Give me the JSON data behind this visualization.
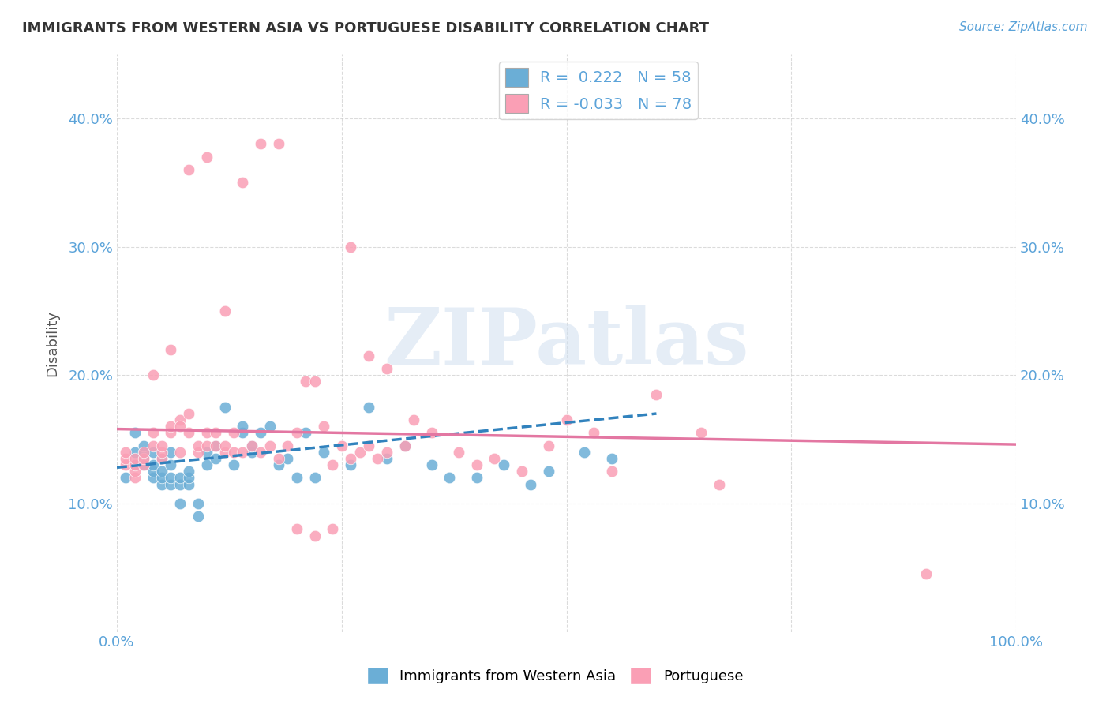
{
  "title": "IMMIGRANTS FROM WESTERN ASIA VS PORTUGUESE DISABILITY CORRELATION CHART",
  "source": "Source: ZipAtlas.com",
  "ylabel": "Disability",
  "watermark": "ZIPatlas",
  "legend_1_label": "Immigrants from Western Asia",
  "legend_2_label": "Portuguese",
  "r1": 0.222,
  "n1": 58,
  "r2": -0.033,
  "n2": 78,
  "blue_color": "#6baed6",
  "pink_color": "#fa9fb5",
  "blue_line_color": "#3182bd",
  "pink_line_color": "#e377a2",
  "axis_color": "#5ba3d9",
  "background_color": "#ffffff",
  "grid_color": "#cccccc",
  "title_color": "#333333",
  "watermark_color": "#d0dff0",
  "xlim": [
    0.0,
    1.0
  ],
  "ylim": [
    0.0,
    0.45
  ],
  "yticks": [
    0.1,
    0.2,
    0.3,
    0.4
  ],
  "ytick_labels": [
    "10.0%",
    "20.0%",
    "30.0%",
    "40.0%"
  ],
  "blue_scatter_x": [
    0.01,
    0.02,
    0.02,
    0.02,
    0.03,
    0.03,
    0.03,
    0.03,
    0.04,
    0.04,
    0.04,
    0.04,
    0.05,
    0.05,
    0.05,
    0.05,
    0.06,
    0.06,
    0.06,
    0.06,
    0.07,
    0.07,
    0.07,
    0.08,
    0.08,
    0.08,
    0.09,
    0.09,
    0.1,
    0.1,
    0.11,
    0.11,
    0.12,
    0.13,
    0.14,
    0.14,
    0.15,
    0.15,
    0.16,
    0.17,
    0.18,
    0.19,
    0.2,
    0.21,
    0.22,
    0.23,
    0.26,
    0.28,
    0.3,
    0.32,
    0.35,
    0.37,
    0.4,
    0.43,
    0.46,
    0.48,
    0.52,
    0.55
  ],
  "blue_scatter_y": [
    0.12,
    0.13,
    0.14,
    0.155,
    0.13,
    0.135,
    0.14,
    0.145,
    0.12,
    0.125,
    0.13,
    0.14,
    0.115,
    0.12,
    0.125,
    0.135,
    0.115,
    0.12,
    0.13,
    0.14,
    0.1,
    0.115,
    0.12,
    0.115,
    0.12,
    0.125,
    0.1,
    0.09,
    0.13,
    0.14,
    0.135,
    0.145,
    0.175,
    0.13,
    0.155,
    0.16,
    0.14,
    0.145,
    0.155,
    0.16,
    0.13,
    0.135,
    0.12,
    0.155,
    0.12,
    0.14,
    0.13,
    0.175,
    0.135,
    0.145,
    0.13,
    0.12,
    0.12,
    0.13,
    0.115,
    0.125,
    0.14,
    0.135
  ],
  "pink_scatter_x": [
    0.01,
    0.01,
    0.01,
    0.02,
    0.02,
    0.02,
    0.02,
    0.03,
    0.03,
    0.03,
    0.04,
    0.04,
    0.04,
    0.05,
    0.05,
    0.05,
    0.06,
    0.06,
    0.06,
    0.07,
    0.07,
    0.07,
    0.08,
    0.08,
    0.09,
    0.09,
    0.1,
    0.1,
    0.11,
    0.11,
    0.12,
    0.12,
    0.13,
    0.13,
    0.14,
    0.15,
    0.16,
    0.17,
    0.18,
    0.19,
    0.2,
    0.21,
    0.22,
    0.23,
    0.24,
    0.25,
    0.26,
    0.27,
    0.28,
    0.29,
    0.3,
    0.32,
    0.33,
    0.35,
    0.38,
    0.4,
    0.42,
    0.45,
    0.48,
    0.5,
    0.53,
    0.55,
    0.6,
    0.65,
    0.2,
    0.22,
    0.24,
    0.26,
    0.28,
    0.3,
    0.08,
    0.1,
    0.12,
    0.14,
    0.16,
    0.18,
    0.67,
    0.9
  ],
  "pink_scatter_y": [
    0.13,
    0.135,
    0.14,
    0.12,
    0.125,
    0.13,
    0.135,
    0.13,
    0.135,
    0.14,
    0.145,
    0.155,
    0.2,
    0.135,
    0.14,
    0.145,
    0.155,
    0.16,
    0.22,
    0.14,
    0.165,
    0.16,
    0.155,
    0.17,
    0.14,
    0.145,
    0.145,
    0.155,
    0.145,
    0.155,
    0.14,
    0.145,
    0.14,
    0.155,
    0.14,
    0.145,
    0.14,
    0.145,
    0.135,
    0.145,
    0.155,
    0.195,
    0.195,
    0.16,
    0.13,
    0.145,
    0.135,
    0.14,
    0.145,
    0.135,
    0.14,
    0.145,
    0.165,
    0.155,
    0.14,
    0.13,
    0.135,
    0.125,
    0.145,
    0.165,
    0.155,
    0.125,
    0.185,
    0.155,
    0.08,
    0.075,
    0.08,
    0.3,
    0.215,
    0.205,
    0.36,
    0.37,
    0.25,
    0.35,
    0.38,
    0.38,
    0.115,
    0.045
  ],
  "blue_line_x": [
    0.0,
    0.6
  ],
  "blue_line_y": [
    0.128,
    0.17
  ],
  "pink_line_x": [
    0.0,
    1.0
  ],
  "pink_line_y": [
    0.158,
    0.146
  ]
}
